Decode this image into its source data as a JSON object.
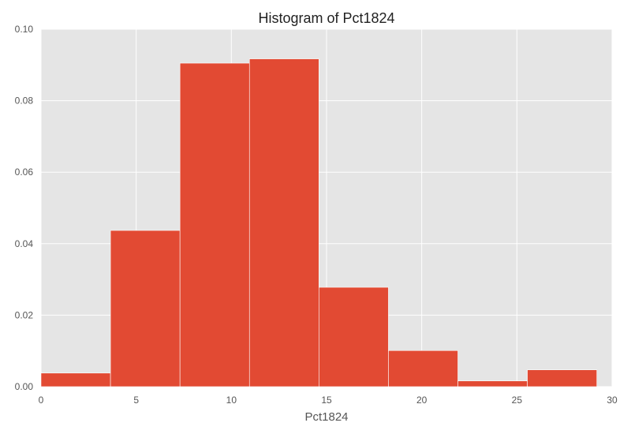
{
  "chart_data": {
    "type": "bar",
    "title": "Histogram of Pct1824",
    "xlabel": "Pct1824",
    "ylabel": "",
    "xlim": [
      0,
      30
    ],
    "ylim": [
      0,
      0.1
    ],
    "xticks": [
      0,
      5,
      10,
      15,
      20,
      25,
      30
    ],
    "xtick_labels": [
      "0",
      "5",
      "10",
      "15",
      "20",
      "25",
      "30"
    ],
    "yticks": [
      0,
      0.02,
      0.04,
      0.06,
      0.08,
      0.1
    ],
    "ytick_labels": [
      "0.00",
      "0.02",
      "0.04",
      "0.06",
      "0.08",
      "0.10"
    ],
    "bin_edges": [
      0,
      3.65,
      7.3,
      10.95,
      14.6,
      18.25,
      21.9,
      25.55,
      29.2
    ],
    "values": [
      0.0038,
      0.0437,
      0.0905,
      0.0917,
      0.0278,
      0.0101,
      0.0016,
      0.0047
    ],
    "grid": true,
    "colors": {
      "bar": "#E24A33",
      "plot_background": "#E5E5E5",
      "grid": "#FFFFFF"
    }
  }
}
